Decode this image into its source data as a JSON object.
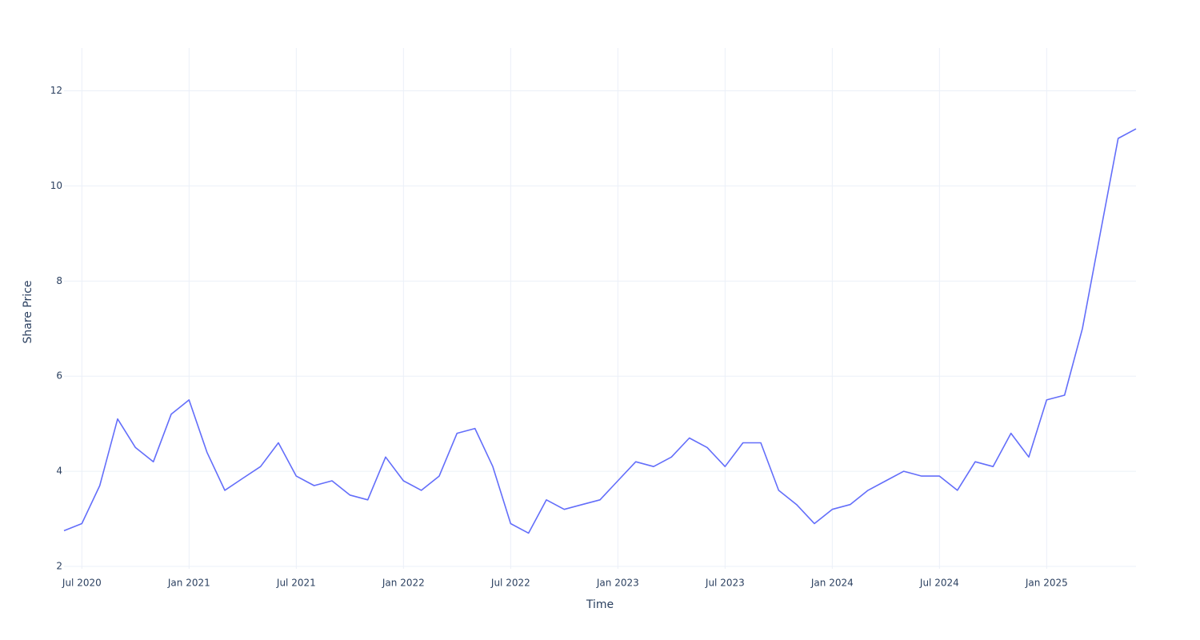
{
  "chart_data": {
    "type": "line",
    "xlabel": "Time",
    "ylabel": "Share Price",
    "x": [
      "2020-06",
      "2020-07",
      "2020-08",
      "2020-09",
      "2020-10",
      "2020-11",
      "2020-12",
      "2021-01",
      "2021-02",
      "2021-03",
      "2021-04",
      "2021-05",
      "2021-06",
      "2021-07",
      "2021-08",
      "2021-09",
      "2021-10",
      "2021-11",
      "2021-12",
      "2022-01",
      "2022-02",
      "2022-03",
      "2022-04",
      "2022-05",
      "2022-06",
      "2022-07",
      "2022-08",
      "2022-09",
      "2022-10",
      "2022-11",
      "2022-12",
      "2023-01",
      "2023-02",
      "2023-03",
      "2023-04",
      "2023-05",
      "2023-06",
      "2023-07",
      "2023-08",
      "2023-09",
      "2023-10",
      "2023-11",
      "2023-12",
      "2024-01",
      "2024-02",
      "2024-03",
      "2024-04",
      "2024-05",
      "2024-06",
      "2024-07",
      "2024-08",
      "2024-09",
      "2024-10",
      "2024-11",
      "2024-12",
      "2025-01",
      "2025-02",
      "2025-03",
      "2025-04",
      "2025-05",
      "2025-06"
    ],
    "series": [
      {
        "name": "Share Price",
        "color": "#636efa",
        "values": [
          2.75,
          2.9,
          3.7,
          5.1,
          4.5,
          4.2,
          5.2,
          5.5,
          4.4,
          3.6,
          3.85,
          4.1,
          4.6,
          3.9,
          3.7,
          3.8,
          3.5,
          3.4,
          4.3,
          3.8,
          3.6,
          3.9,
          4.8,
          4.9,
          4.1,
          2.9,
          2.7,
          3.4,
          3.2,
          3.3,
          3.4,
          3.8,
          4.2,
          4.1,
          4.3,
          4.7,
          4.5,
          4.1,
          4.6,
          4.6,
          3.6,
          3.3,
          2.9,
          3.2,
          3.3,
          3.6,
          3.8,
          4.0,
          3.9,
          3.9,
          3.6,
          4.2,
          4.1,
          4.8,
          4.3,
          5.5,
          5.6,
          7.0,
          9.0,
          11.0,
          11.2
        ]
      }
    ],
    "xlim": [
      "2020-06",
      "2025-06"
    ],
    "xticks": [
      {
        "value": "2020-07",
        "label": "Jul 2020"
      },
      {
        "value": "2021-01",
        "label": "Jan 2021"
      },
      {
        "value": "2021-07",
        "label": "Jul 2021"
      },
      {
        "value": "2022-01",
        "label": "Jan 2022"
      },
      {
        "value": "2022-07",
        "label": "Jul 2022"
      },
      {
        "value": "2023-01",
        "label": "Jan 2023"
      },
      {
        "value": "2023-07",
        "label": "Jul 2023"
      },
      {
        "value": "2024-01",
        "label": "Jan 2024"
      },
      {
        "value": "2024-07",
        "label": "Jul 2024"
      },
      {
        "value": "2025-01",
        "label": "Jan 2025"
      }
    ],
    "ylim": [
      1.95,
      12.9
    ],
    "yticks": [
      2,
      4,
      6,
      8,
      10,
      12
    ],
    "grid": true
  }
}
